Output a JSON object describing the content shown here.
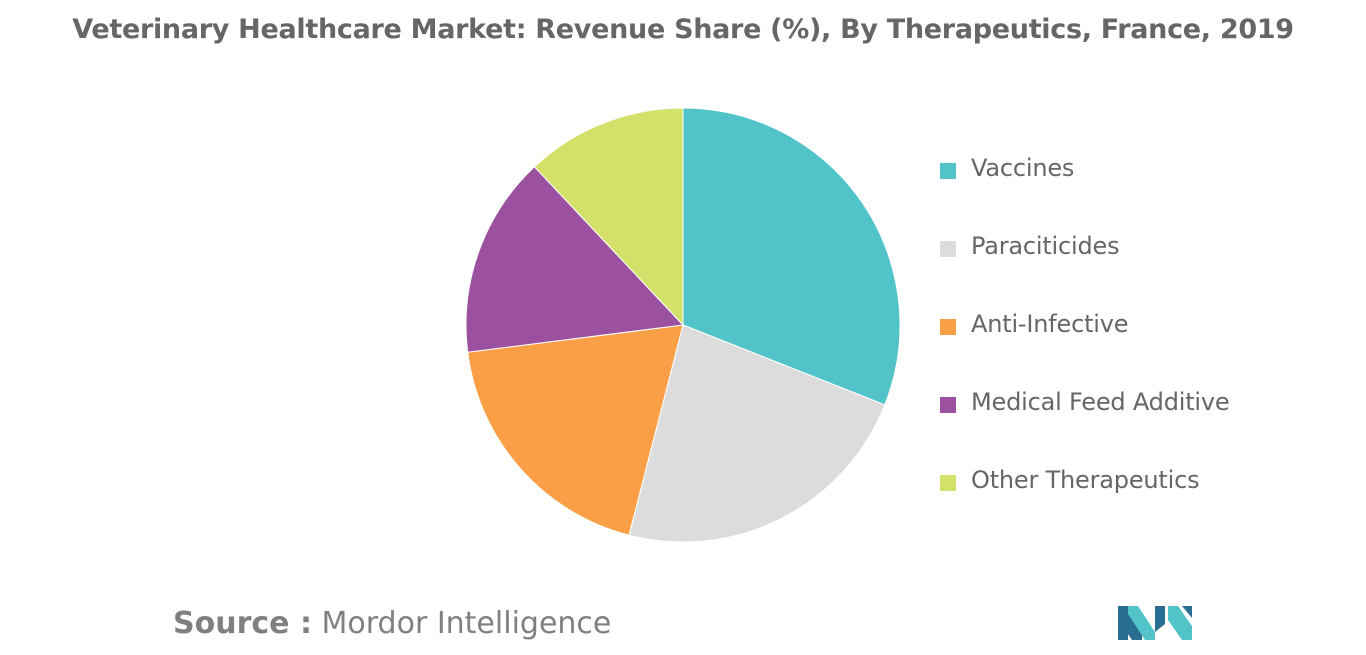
{
  "chart_data": {
    "type": "pie",
    "title": "Veterinary Healthcare Market: Revenue Share (%), By Therapeutics, France, 2019",
    "categories": [
      "Vaccines",
      "Paraciticides",
      "Anti-Infective",
      "Medical Feed Additive",
      "Other Therapeutics"
    ],
    "values": [
      31,
      23,
      19,
      15,
      12
    ],
    "colors": [
      "#52c4c9",
      "#dcdcdc",
      "#fa9f46",
      "#9b519f",
      "#d3e16a"
    ],
    "legend_position": "right"
  },
  "source": {
    "label": "Source :",
    "value": "Mordor Intelligence"
  },
  "logo": {
    "name": "mordor-intelligence-logo",
    "colors": [
      "#2a6f8f",
      "#52c4c9"
    ]
  }
}
